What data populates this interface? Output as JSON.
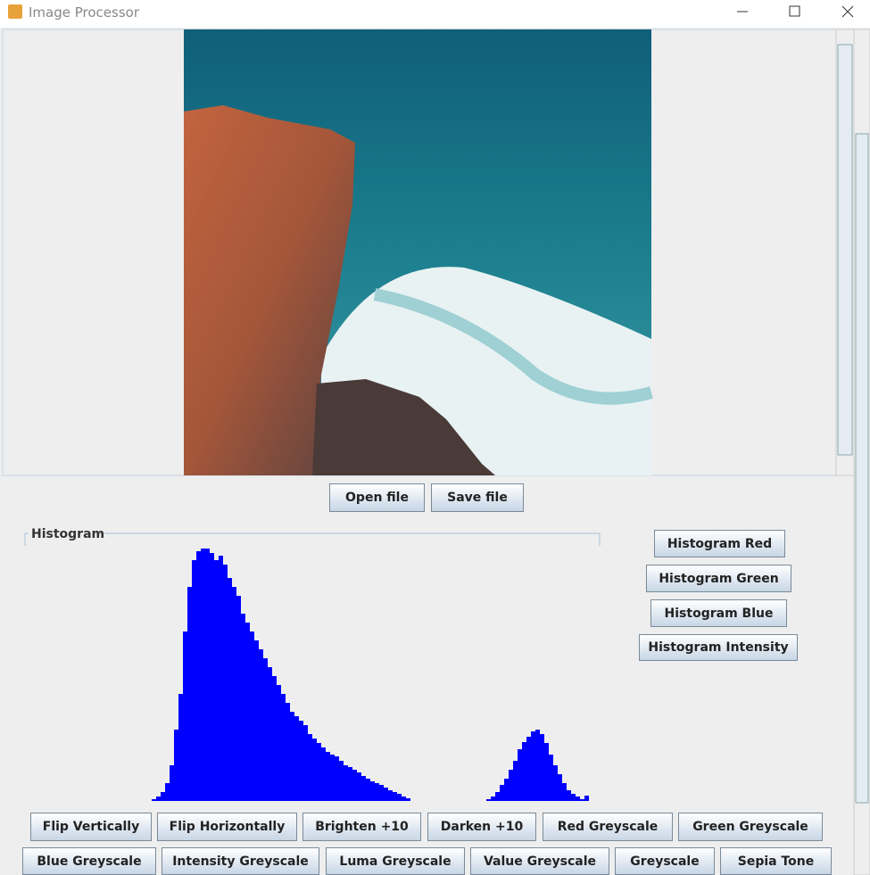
{
  "window": {
    "title": "Image Processor"
  },
  "file_buttons": [
    "Open file",
    "Save file"
  ],
  "histogram": {
    "type": "bar",
    "title": "Histogram",
    "color": "#0000ff",
    "values": [
      2,
      5,
      10,
      20,
      40,
      80,
      120,
      190,
      240,
      270,
      280,
      283,
      283,
      278,
      270,
      275,
      265,
      250,
      240,
      230,
      210,
      200,
      190,
      180,
      170,
      160,
      150,
      140,
      130,
      120,
      110,
      100,
      95,
      90,
      85,
      75,
      70,
      65,
      60,
      55,
      52,
      50,
      45,
      40,
      38,
      35,
      32,
      28,
      25,
      22,
      20,
      18,
      15,
      12,
      10,
      8,
      5,
      3,
      0,
      0,
      0,
      0,
      0,
      0,
      0,
      0,
      0,
      0,
      0,
      0,
      0,
      0,
      0,
      0,
      0,
      2,
      5,
      10,
      18,
      25,
      35,
      45,
      58,
      66,
      72,
      78,
      80,
      75,
      65,
      52,
      40,
      30,
      20,
      12,
      8,
      5,
      2,
      6
    ]
  },
  "histogram_buttons": [
    "Histogram Red",
    "Histogram Green",
    "Histogram Blue",
    "Histogram Intensity"
  ],
  "operation_buttons": [
    "Flip Vertically",
    "Flip Horizontally",
    "Brighten +10",
    "Darken +10",
    "Red Greyscale",
    "Green Greyscale",
    "Blue Greyscale",
    "Intensity Greyscale",
    "Luma Greyscale",
    "Value Greyscale",
    "Greyscale",
    "Sepia Tone"
  ]
}
